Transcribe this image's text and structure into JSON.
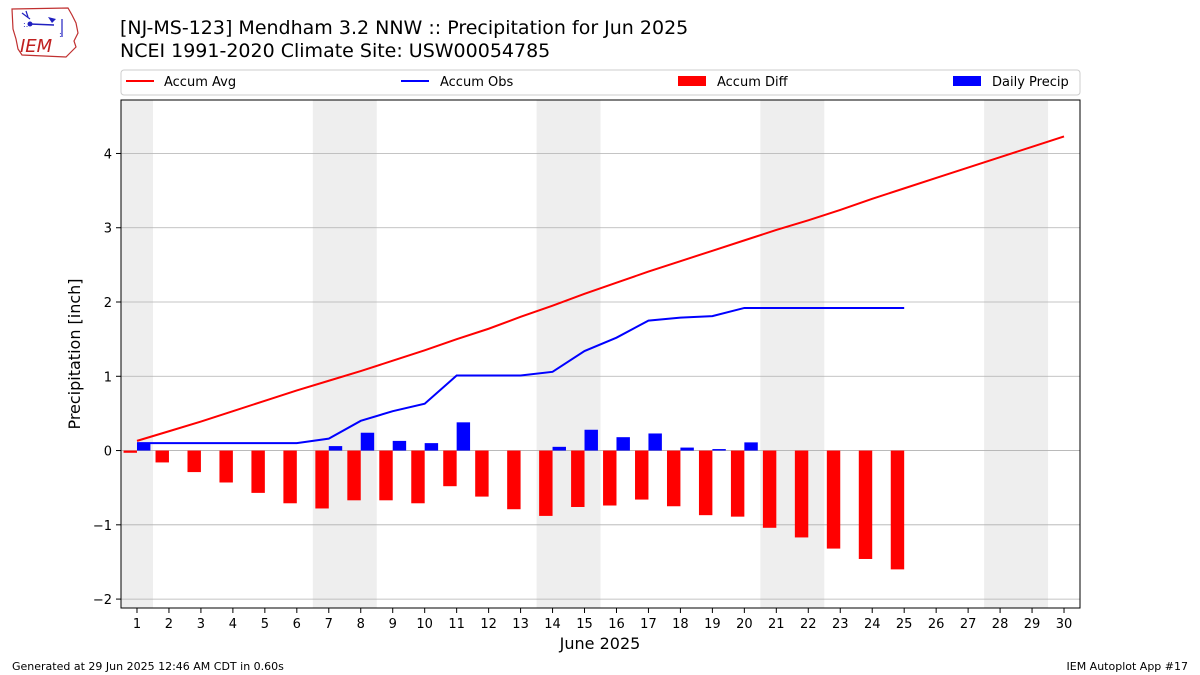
{
  "title_line1": "[NJ-MS-123] Mendham 3.2 NNW :: Precipitation for Jun 2025",
  "title_line2": "NCEI 1991-2020 Climate Site: USW00054785",
  "logo_text": "IEM",
  "footer_left": "Generated at 29 Jun 2025 12:46 AM CDT in 0.60s",
  "footer_right": "IEM Autoplot App #17",
  "colors": {
    "avg": "#ff0000",
    "obs": "#0000ff",
    "diff": "#ff0000",
    "daily": "#0000ff",
    "weekend_band": "#eeeeee",
    "grid": "#b0b0b0"
  },
  "chart_data": {
    "type": "bar",
    "xlabel": "June 2025",
    "ylabel": "Precipitation [inch]",
    "xlim": [
      0.5,
      30.5
    ],
    "ylim": [
      -2.12,
      4.72
    ],
    "x_ticks": [
      1,
      2,
      3,
      4,
      5,
      6,
      7,
      8,
      9,
      10,
      11,
      12,
      13,
      14,
      15,
      16,
      17,
      18,
      19,
      20,
      21,
      22,
      23,
      24,
      25,
      26,
      27,
      28,
      29,
      30
    ],
    "y_ticks": [
      -2,
      -1,
      0,
      1,
      2,
      3,
      4
    ],
    "y_tick_labels": [
      "−2",
      "−1",
      "0",
      "1",
      "2",
      "3",
      "4"
    ],
    "grid": "horizontal",
    "legend_position": "top, above plot",
    "weekend_bands": [
      [
        0.5,
        1.5
      ],
      [
        6.5,
        8.5
      ],
      [
        13.5,
        15.5
      ],
      [
        20.5,
        22.5
      ],
      [
        27.5,
        29.5
      ]
    ],
    "series": [
      {
        "name": "Accum Avg",
        "type": "line",
        "x": [
          1,
          2,
          3,
          4,
          5,
          6,
          7,
          8,
          9,
          10,
          11,
          12,
          13,
          14,
          15,
          16,
          17,
          18,
          19,
          20,
          21,
          22,
          23,
          24,
          25,
          26,
          27,
          28,
          29,
          30
        ],
        "values": [
          0.13,
          0.26,
          0.39,
          0.53,
          0.67,
          0.81,
          0.94,
          1.07,
          1.21,
          1.35,
          1.5,
          1.64,
          1.8,
          1.95,
          2.11,
          2.26,
          2.41,
          2.55,
          2.69,
          2.83,
          2.97,
          3.1,
          3.24,
          3.39,
          3.53,
          3.67,
          3.81,
          3.95,
          4.09,
          4.23
        ]
      },
      {
        "name": "Accum Obs",
        "type": "line",
        "x": [
          1,
          2,
          3,
          4,
          5,
          6,
          7,
          8,
          9,
          10,
          11,
          12,
          13,
          14,
          15,
          16,
          17,
          18,
          19,
          20,
          21,
          22,
          23,
          24,
          25
        ],
        "values": [
          0.1,
          0.1,
          0.1,
          0.1,
          0.1,
          0.1,
          0.16,
          0.4,
          0.53,
          0.63,
          1.01,
          1.01,
          1.01,
          1.06,
          1.34,
          1.52,
          1.75,
          1.79,
          1.81,
          1.92,
          1.92,
          1.92,
          1.92,
          1.92,
          1.92
        ]
      },
      {
        "name": "Accum Diff",
        "type": "bar",
        "x": [
          1,
          2,
          3,
          4,
          5,
          6,
          7,
          8,
          9,
          10,
          11,
          12,
          13,
          14,
          15,
          16,
          17,
          18,
          19,
          20,
          21,
          22,
          23,
          24,
          25
        ],
        "values": [
          -0.03,
          -0.16,
          -0.29,
          -0.43,
          -0.57,
          -0.71,
          -0.78,
          -0.67,
          -0.67,
          -0.71,
          -0.48,
          -0.62,
          -0.79,
          -0.88,
          -0.76,
          -0.74,
          -0.66,
          -0.75,
          -0.87,
          -0.89,
          -1.04,
          -1.17,
          -1.32,
          -1.46,
          -1.6
        ]
      },
      {
        "name": "Daily Precip",
        "type": "bar",
        "x": [
          1,
          2,
          3,
          4,
          5,
          6,
          7,
          8,
          9,
          10,
          11,
          12,
          13,
          14,
          15,
          16,
          17,
          18,
          19,
          20,
          21,
          22,
          23,
          24,
          25
        ],
        "values": [
          0.1,
          0,
          0,
          0,
          0,
          0,
          0.06,
          0.24,
          0.13,
          0.1,
          0.38,
          0,
          0,
          0.05,
          0.28,
          0.18,
          0.23,
          0.04,
          0.02,
          0.11,
          0,
          0,
          0,
          0,
          0
        ]
      }
    ]
  }
}
